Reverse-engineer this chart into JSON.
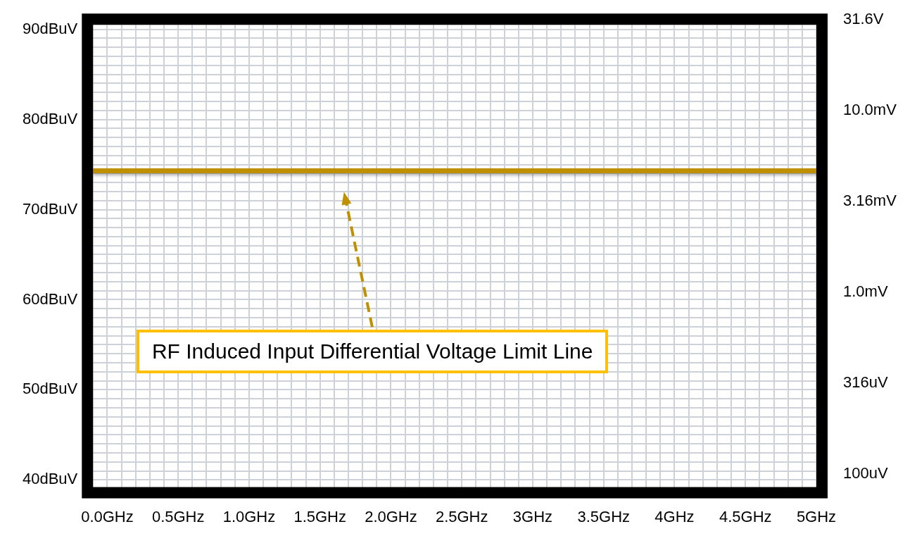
{
  "chart_data": {
    "type": "line",
    "xlim": [
      -0.1,
      5.0
    ],
    "xticks": [
      {
        "value": 0,
        "label": "0.0GHz"
      },
      {
        "value": 0.1,
        "label": null
      },
      {
        "value": 0.2,
        "label": null
      },
      {
        "value": 0.3,
        "label": null
      },
      {
        "value": 0.4,
        "label": null
      },
      {
        "value": 0.5,
        "label": "0.5GHz"
      },
      {
        "value": 0.6,
        "label": null
      },
      {
        "value": 0.7,
        "label": null
      },
      {
        "value": 0.8,
        "label": null
      },
      {
        "value": 0.9,
        "label": null
      },
      {
        "value": 1.0,
        "label": "1.0GHz"
      },
      {
        "value": 1.1,
        "label": null
      },
      {
        "value": 1.2,
        "label": null
      },
      {
        "value": 1.3,
        "label": null
      },
      {
        "value": 1.4,
        "label": null
      },
      {
        "value": 1.5,
        "label": "1.5GHz"
      },
      {
        "value": 1.6,
        "label": null
      },
      {
        "value": 1.7,
        "label": null
      },
      {
        "value": 1.8,
        "label": null
      },
      {
        "value": 1.9,
        "label": null
      },
      {
        "value": 2.0,
        "label": "2.0GHz"
      },
      {
        "value": 2.1,
        "label": null
      },
      {
        "value": 2.2,
        "label": null
      },
      {
        "value": 2.3,
        "label": null
      },
      {
        "value": 2.4,
        "label": null
      },
      {
        "value": 2.5,
        "label": "2.5GHz"
      },
      {
        "value": 2.6,
        "label": null
      },
      {
        "value": 2.7,
        "label": null
      },
      {
        "value": 2.8,
        "label": null
      },
      {
        "value": 2.9,
        "label": null
      },
      {
        "value": 3.0,
        "label": "3GHz"
      },
      {
        "value": 3.1,
        "label": null
      },
      {
        "value": 3.2,
        "label": null
      },
      {
        "value": 3.3,
        "label": null
      },
      {
        "value": 3.4,
        "label": null
      },
      {
        "value": 3.5,
        "label": "3.5GHz"
      },
      {
        "value": 3.6,
        "label": null
      },
      {
        "value": 3.7,
        "label": null
      },
      {
        "value": 3.8,
        "label": null
      },
      {
        "value": 3.9,
        "label": null
      },
      {
        "value": 4.0,
        "label": "4GHz"
      },
      {
        "value": 4.1,
        "label": null
      },
      {
        "value": 4.2,
        "label": null
      },
      {
        "value": 4.3,
        "label": null
      },
      {
        "value": 4.4,
        "label": null
      },
      {
        "value": 4.5,
        "label": "4.5GHz"
      },
      {
        "value": 4.6,
        "label": null
      },
      {
        "value": 4.7,
        "label": null
      },
      {
        "value": 4.8,
        "label": null
      },
      {
        "value": 4.9,
        "label": null
      },
      {
        "value": 5.0,
        "label": "5GHz"
      }
    ],
    "ylim": [
      39.2,
      90.5
    ],
    "yticks": [
      {
        "value": 40,
        "label": "40dBuV"
      },
      {
        "value": 41,
        "label": null
      },
      {
        "value": 42,
        "label": null
      },
      {
        "value": 43,
        "label": null
      },
      {
        "value": 44,
        "label": null
      },
      {
        "value": 45,
        "label": null
      },
      {
        "value": 46,
        "label": null
      },
      {
        "value": 47,
        "label": null
      },
      {
        "value": 48,
        "label": null
      },
      {
        "value": 49,
        "label": null
      },
      {
        "value": 50,
        "label": "50dBuV"
      },
      {
        "value": 51,
        "label": null
      },
      {
        "value": 52,
        "label": null
      },
      {
        "value": 53,
        "label": null
      },
      {
        "value": 54,
        "label": null
      },
      {
        "value": 55,
        "label": null
      },
      {
        "value": 56,
        "label": null
      },
      {
        "value": 57,
        "label": null
      },
      {
        "value": 58,
        "label": null
      },
      {
        "value": 59,
        "label": null
      },
      {
        "value": 60,
        "label": "60dBuV"
      },
      {
        "value": 61,
        "label": null
      },
      {
        "value": 62,
        "label": null
      },
      {
        "value": 63,
        "label": null
      },
      {
        "value": 64,
        "label": null
      },
      {
        "value": 65,
        "label": null
      },
      {
        "value": 66,
        "label": null
      },
      {
        "value": 67,
        "label": null
      },
      {
        "value": 68,
        "label": null
      },
      {
        "value": 69,
        "label": null
      },
      {
        "value": 70,
        "label": "70dBuV"
      },
      {
        "value": 71,
        "label": null
      },
      {
        "value": 72,
        "label": null
      },
      {
        "value": 73,
        "label": null
      },
      {
        "value": 74,
        "label": null
      },
      {
        "value": 75,
        "label": null
      },
      {
        "value": 76,
        "label": null
      },
      {
        "value": 77,
        "label": null
      },
      {
        "value": 78,
        "label": null
      },
      {
        "value": 79,
        "label": null
      },
      {
        "value": 80,
        "label": "80dBuV"
      },
      {
        "value": 81,
        "label": null
      },
      {
        "value": 82,
        "label": null
      },
      {
        "value": 83,
        "label": null
      },
      {
        "value": 84,
        "label": null
      },
      {
        "value": 85,
        "label": null
      },
      {
        "value": 86,
        "label": null
      },
      {
        "value": 87,
        "label": null
      },
      {
        "value": 88,
        "label": null
      },
      {
        "value": 89,
        "label": null
      },
      {
        "value": 90,
        "label": "90dBuV"
      }
    ],
    "annotations": [
      "RF Induced Input Differential Voltage Limit Line",
      "31.6V",
      "10.0mV",
      "3.16mV",
      "1.0mV",
      "316uV",
      "100uV"
    ],
    "grid": true,
    "ref_lines": [
      {
        "axis": "y",
        "value": 74.3,
        "color": "#bf9000"
      }
    ]
  }
}
